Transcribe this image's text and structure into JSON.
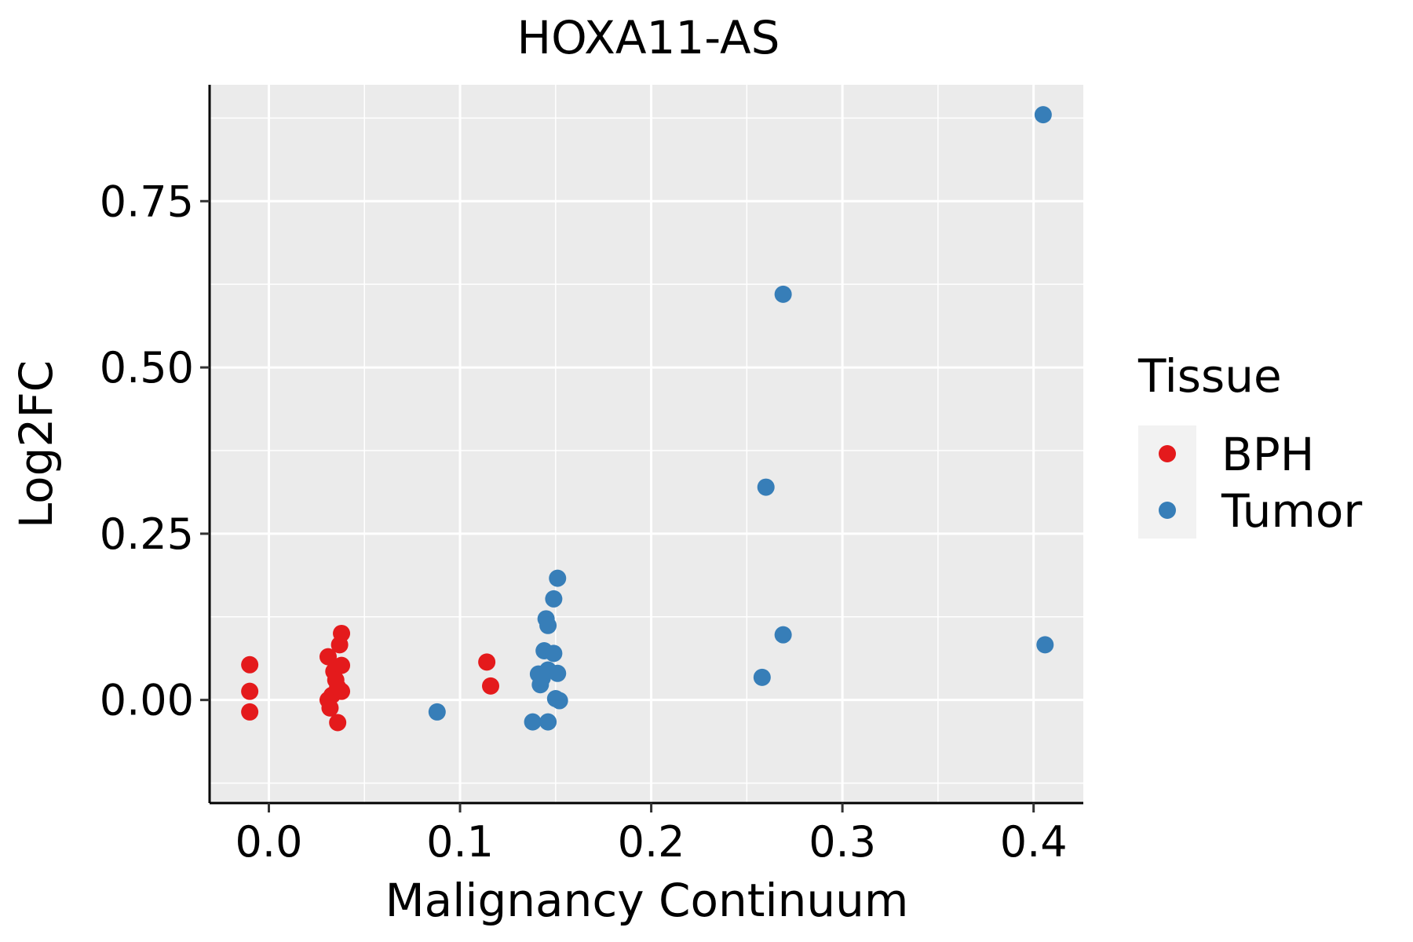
{
  "chart_data": {
    "type": "scatter",
    "title": "HOXA11-AS",
    "xlabel": "Malignancy Continuum",
    "ylabel": "Log2FC",
    "xlim": [
      -0.031,
      0.426
    ],
    "ylim": [
      -0.155,
      0.925
    ],
    "x_ticks": [
      0.0,
      0.1,
      0.2,
      0.3,
      0.4
    ],
    "x_tick_labels": [
      "0.0",
      "0.1",
      "0.2",
      "0.3",
      "0.4"
    ],
    "y_ticks": [
      0.0,
      0.25,
      0.5,
      0.75
    ],
    "y_tick_labels": [
      "0.00",
      "0.25",
      "0.50",
      "0.75"
    ],
    "grid": true,
    "legend": {
      "title": "Tissue",
      "position": "right",
      "entries": [
        {
          "label": "BPH",
          "color": "#E41A1C"
        },
        {
          "label": "Tumor",
          "color": "#377EB8"
        }
      ]
    },
    "series": [
      {
        "name": "BPH",
        "color": "#E41A1C",
        "points": [
          [
            -0.01,
            0.053
          ],
          [
            -0.01,
            0.013
          ],
          [
            -0.01,
            -0.018
          ],
          [
            0.031,
            0.065
          ],
          [
            0.031,
            0.0
          ],
          [
            0.032,
            -0.012
          ],
          [
            0.033,
            0.007
          ],
          [
            0.034,
            0.043
          ],
          [
            0.035,
            0.03
          ],
          [
            0.036,
            0.019
          ],
          [
            0.036,
            -0.034
          ],
          [
            0.037,
            0.083
          ],
          [
            0.038,
            0.1
          ],
          [
            0.038,
            0.052
          ],
          [
            0.038,
            0.013
          ],
          [
            0.114,
            0.057
          ],
          [
            0.116,
            0.021
          ]
        ]
      },
      {
        "name": "Tumor",
        "color": "#377EB8",
        "points": [
          [
            0.088,
            -0.018
          ],
          [
            0.138,
            -0.033
          ],
          [
            0.141,
            0.039
          ],
          [
            0.142,
            0.023
          ],
          [
            0.143,
            0.033
          ],
          [
            0.144,
            0.074
          ],
          [
            0.145,
            0.122
          ],
          [
            0.146,
            -0.033
          ],
          [
            0.146,
            0.112
          ],
          [
            0.146,
            0.045
          ],
          [
            0.149,
            0.07
          ],
          [
            0.149,
            0.152
          ],
          [
            0.15,
            0.002
          ],
          [
            0.151,
            0.04
          ],
          [
            0.151,
            0.183
          ],
          [
            0.152,
            -0.001
          ],
          [
            0.258,
            0.034
          ],
          [
            0.26,
            0.32
          ],
          [
            0.269,
            0.098
          ],
          [
            0.269,
            0.61
          ],
          [
            0.405,
            0.88
          ],
          [
            0.406,
            0.083
          ]
        ]
      }
    ]
  }
}
